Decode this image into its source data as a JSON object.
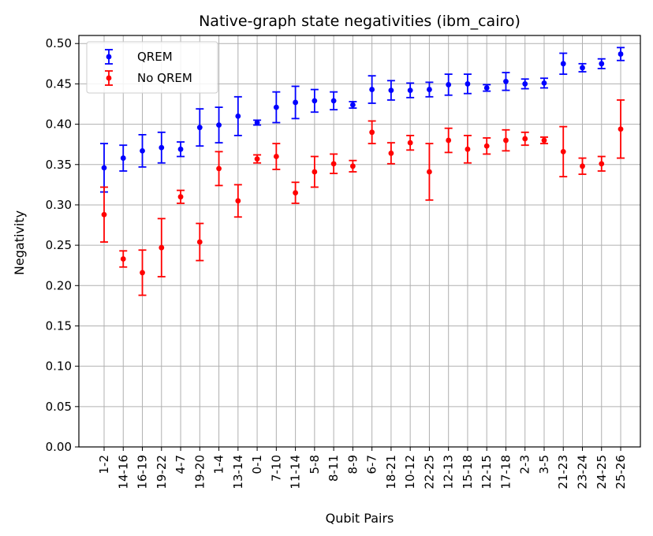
{
  "chart_data": {
    "type": "scatter",
    "title": "Native-graph state negativities (ibm_cairo)",
    "xlabel": "Qubit Pairs",
    "ylabel": "Negativity",
    "ylim": [
      0,
      0.51
    ],
    "yticks": [
      "0.00",
      "0.05",
      "0.10",
      "0.15",
      "0.20",
      "0.25",
      "0.30",
      "0.35",
      "0.40",
      "0.45",
      "0.50"
    ],
    "categories": [
      "1-2",
      "14-16",
      "16-19",
      "19-22",
      "4-7",
      "19-20",
      "1-4",
      "13-14",
      "0-1",
      "7-10",
      "11-14",
      "5-8",
      "8-11",
      "8-9",
      "6-7",
      "18-21",
      "10-12",
      "22-25",
      "12-13",
      "15-18",
      "12-15",
      "17-18",
      "2-3",
      "3-5",
      "21-23",
      "23-24",
      "24-25",
      "25-26"
    ],
    "grid": true,
    "legend_position": "top-left",
    "series": [
      {
        "name": "QREM",
        "color": "#0000ff",
        "values": [
          0.346,
          0.358,
          0.367,
          0.371,
          0.369,
          0.396,
          0.399,
          0.41,
          0.402,
          0.421,
          0.427,
          0.429,
          0.429,
          0.424,
          0.443,
          0.442,
          0.442,
          0.443,
          0.449,
          0.45,
          0.445,
          0.453,
          0.45,
          0.451,
          0.475,
          0.47,
          0.475,
          0.487
        ],
        "errors": [
          0.03,
          0.016,
          0.02,
          0.019,
          0.009,
          0.023,
          0.022,
          0.024,
          0.003,
          0.019,
          0.02,
          0.014,
          0.011,
          0.004,
          0.017,
          0.012,
          0.009,
          0.009,
          0.013,
          0.012,
          0.004,
          0.011,
          0.006,
          0.006,
          0.013,
          0.005,
          0.006,
          0.008
        ]
      },
      {
        "name": "No QREM",
        "color": "#ff0000",
        "values": [
          0.288,
          0.233,
          0.216,
          0.247,
          0.31,
          0.254,
          0.345,
          0.305,
          0.357,
          0.36,
          0.315,
          0.341,
          0.351,
          0.348,
          0.39,
          0.364,
          0.377,
          0.341,
          0.38,
          0.369,
          0.373,
          0.38,
          0.382,
          0.38,
          0.366,
          0.348,
          0.351,
          0.394
        ],
        "errors": [
          0.034,
          0.01,
          0.028,
          0.036,
          0.008,
          0.023,
          0.021,
          0.02,
          0.005,
          0.016,
          0.013,
          0.019,
          0.012,
          0.007,
          0.014,
          0.013,
          0.009,
          0.035,
          0.015,
          0.017,
          0.01,
          0.013,
          0.008,
          0.004,
          0.031,
          0.01,
          0.009,
          0.036
        ]
      }
    ]
  }
}
